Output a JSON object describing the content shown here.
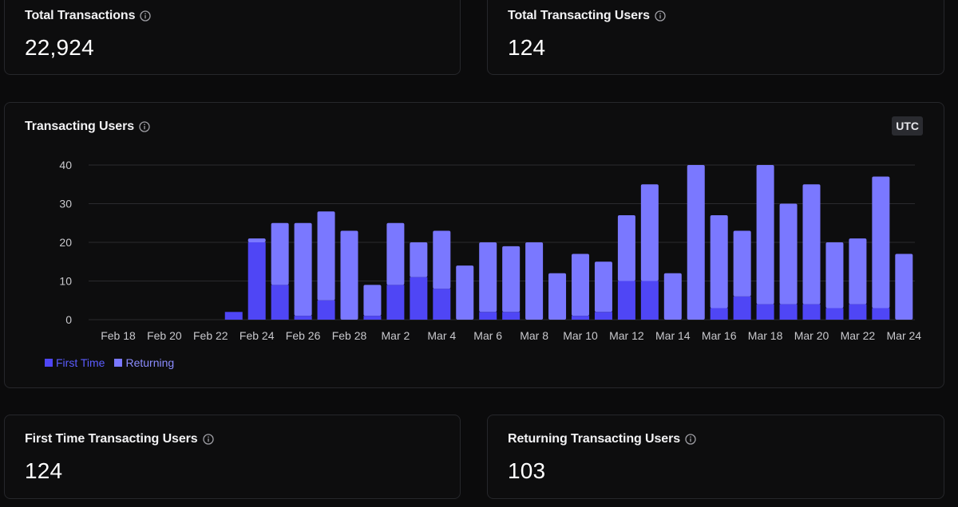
{
  "cards": {
    "total_transactions": {
      "title": "Total Transactions",
      "value": "22,924"
    },
    "total_transacting_users": {
      "title": "Total Transacting Users",
      "value": "124"
    },
    "first_time_users": {
      "title": "First Time Transacting Users",
      "value": "124"
    },
    "returning_users": {
      "title": "Returning Transacting Users",
      "value": "103"
    }
  },
  "chart_card": {
    "title": "Transacting Users",
    "timezone_badge": "UTC"
  },
  "colors": {
    "first_time": "#4f46f5",
    "returning": "#7a78ff",
    "grid": "#2a2a2e",
    "tick": "#c8c8cc"
  },
  "icons": {
    "info": "info-circle-icon"
  },
  "chart_data": {
    "type": "bar",
    "stacked": true,
    "title": "Transacting Users",
    "xlabel": "",
    "ylabel": "",
    "ylim": [
      0,
      40
    ],
    "yticks": [
      0,
      10,
      20,
      30,
      40
    ],
    "legend_position": "bottom-left",
    "categories": [
      "Feb 18",
      "Feb 19",
      "Feb 20",
      "Feb 21",
      "Feb 22",
      "Feb 23",
      "Feb 24",
      "Feb 25",
      "Feb 26",
      "Feb 27",
      "Feb 28",
      "Mar 1",
      "Mar 2",
      "Mar 3",
      "Mar 4",
      "Mar 5",
      "Mar 6",
      "Mar 7",
      "Mar 8",
      "Mar 9",
      "Mar 10",
      "Mar 11",
      "Mar 12",
      "Mar 13",
      "Mar 14",
      "Mar 15",
      "Mar 16",
      "Mar 17",
      "Mar 18",
      "Mar 19",
      "Mar 20",
      "Mar 21",
      "Mar 22",
      "Mar 23",
      "Mar 24"
    ],
    "xtick_labels": [
      "Feb 18",
      "Feb 20",
      "Feb 22",
      "Feb 24",
      "Feb 26",
      "Feb 28",
      "Mar 2",
      "Mar 4",
      "Mar 6",
      "Mar 8",
      "Mar 10",
      "Mar 12",
      "Mar 14",
      "Mar 16",
      "Mar 18",
      "Mar 20",
      "Mar 22",
      "Mar 24"
    ],
    "series": [
      {
        "name": "First Time",
        "values": [
          0,
          0,
          0,
          0,
          0,
          2,
          20,
          9,
          1,
          5,
          0,
          1,
          9,
          11,
          8,
          0,
          2,
          2,
          0,
          0,
          1,
          2,
          10,
          10,
          0,
          0,
          3,
          6,
          4,
          4,
          4,
          3,
          4,
          3,
          0
        ]
      },
      {
        "name": "Returning",
        "values": [
          0,
          0,
          0,
          0,
          0,
          0,
          1,
          16,
          24,
          23,
          23,
          8,
          16,
          9,
          15,
          14,
          18,
          17,
          20,
          12,
          16,
          13,
          17,
          25,
          12,
          40,
          24,
          17,
          36,
          26,
          31,
          17,
          17,
          34,
          17
        ]
      }
    ]
  }
}
